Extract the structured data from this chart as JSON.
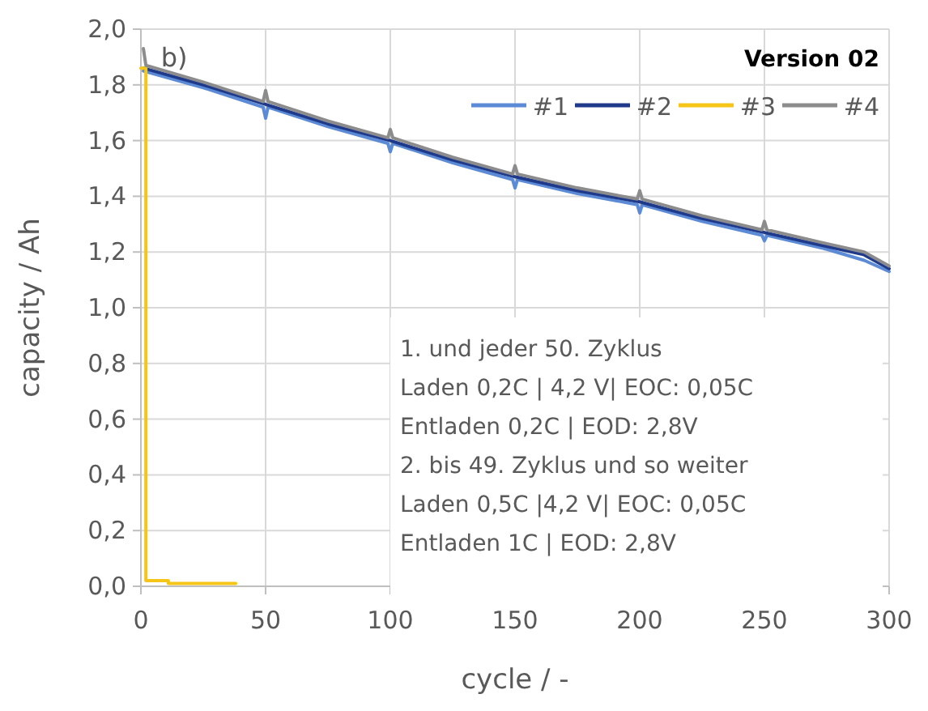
{
  "chart_data": {
    "type": "line",
    "xlabel": "cycle / -",
    "ylabel": "capacity / Ah",
    "legend_title": "Version 02",
    "legend": "top right",
    "grid": true,
    "line_style": "solid",
    "marker": "none",
    "xlim": [
      0,
      300
    ],
    "xticks": [
      0,
      50,
      100,
      150,
      200,
      250,
      300
    ],
    "ylim": [
      0,
      2
    ],
    "yticks": [
      {
        "value": 0,
        "label": "0,0"
      },
      {
        "value": 0.2,
        "label": "0,2"
      },
      {
        "value": 0.4,
        "label": "0,4"
      },
      {
        "value": 0.6,
        "label": "0,6"
      },
      {
        "value": 0.8,
        "label": "0,8"
      },
      {
        "value": 1,
        "label": "1,0"
      },
      {
        "value": 1.2,
        "label": "1,2"
      },
      {
        "value": 1.4,
        "label": "1,4"
      },
      {
        "value": 1.6,
        "label": "1,6"
      },
      {
        "value": 1.8,
        "label": "1,8"
      },
      {
        "value": 2,
        "label": "2,0"
      }
    ],
    "series": [
      {
        "name": "#1",
        "color": "#5b8ad6",
        "x": [
          1,
          25,
          49,
          50,
          51,
          75,
          99,
          100,
          101,
          125,
          149,
          150,
          151,
          175,
          199,
          200,
          201,
          225,
          249,
          250,
          251,
          275,
          290,
          300
        ],
        "values": [
          1.85,
          1.79,
          1.72,
          1.68,
          1.72,
          1.65,
          1.59,
          1.56,
          1.59,
          1.52,
          1.46,
          1.43,
          1.46,
          1.41,
          1.37,
          1.34,
          1.37,
          1.31,
          1.26,
          1.24,
          1.26,
          1.21,
          1.17,
          1.13
        ]
      },
      {
        "name": "#2",
        "color": "#1f3a8a",
        "x": [
          1,
          25,
          50,
          75,
          100,
          125,
          150,
          175,
          200,
          225,
          250,
          275,
          290,
          300
        ],
        "values": [
          1.86,
          1.8,
          1.73,
          1.66,
          1.6,
          1.53,
          1.47,
          1.42,
          1.38,
          1.32,
          1.27,
          1.22,
          1.19,
          1.14
        ]
      },
      {
        "name": "#3",
        "type": "step",
        "color": "#f5c518",
        "x": [
          0,
          1,
          2,
          10,
          11,
          38
        ],
        "values": [
          1.86,
          1.86,
          0.02,
          0.02,
          0.01,
          0.01
        ]
      },
      {
        "name": "#4",
        "color": "#8c8c8c",
        "x": [
          1,
          2,
          25,
          49,
          50,
          51,
          75,
          99,
          100,
          101,
          125,
          149,
          150,
          151,
          175,
          199,
          200,
          201,
          225,
          249,
          250,
          251,
          275,
          290,
          300
        ],
        "values": [
          1.93,
          1.87,
          1.81,
          1.74,
          1.78,
          1.74,
          1.67,
          1.61,
          1.64,
          1.61,
          1.54,
          1.48,
          1.51,
          1.48,
          1.43,
          1.39,
          1.42,
          1.39,
          1.33,
          1.28,
          1.31,
          1.28,
          1.23,
          1.2,
          1.15
        ]
      }
    ],
    "annotations": [
      "b)",
      "1. und jeder 50. Zyklus",
      "Laden 0,2C | 4,2 V| EOC: 0,05C",
      "Entladen 0,2C | EOD: 2,8V",
      "2. bis 49. Zyklus und so weiter",
      "Laden 0,5C |4,2 V| EOC: 0,05C",
      "Entladen 1C | EOD: 2,8V"
    ]
  }
}
